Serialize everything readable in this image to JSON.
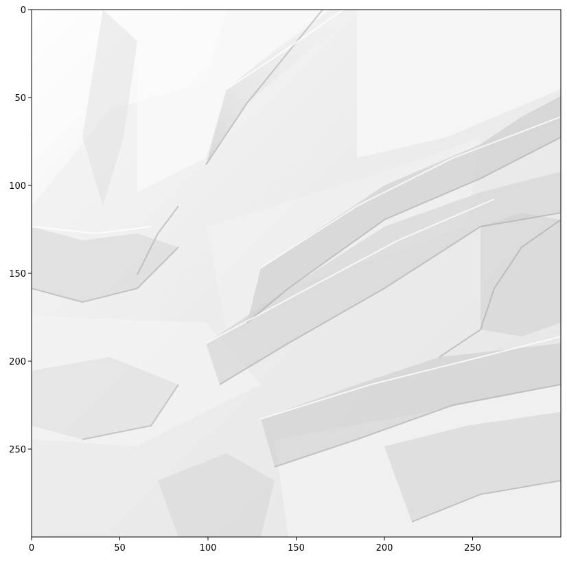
{
  "image": {
    "description_kind": "crumpled-paper-texture",
    "pixel_extent": {
      "width": 300,
      "height": 300
    },
    "colors": {
      "paper_base": "#ececec",
      "paper_highlight": "#fafafa",
      "crease_shadow": "#b8b8b8",
      "axis_color": "#000000"
    }
  },
  "axes": {
    "x_ticks": [
      0,
      50,
      100,
      150,
      200,
      250
    ],
    "y_ticks": [
      0,
      50,
      100,
      150,
      200,
      250
    ],
    "xlim": [
      0,
      300
    ],
    "ylim_inverted": [
      300,
      0
    ]
  }
}
